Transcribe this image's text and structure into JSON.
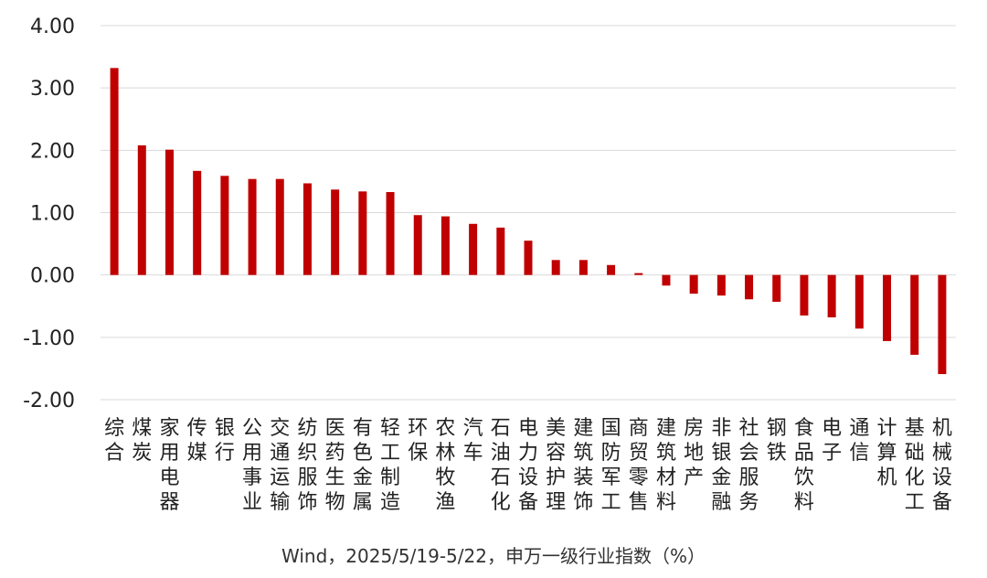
{
  "chart_data": {
    "type": "bar",
    "title": "",
    "xlabel": "",
    "ylabel": "",
    "ylim": [
      -2,
      4
    ],
    "yticks": [
      "4.00",
      "3.00",
      "2.00",
      "1.00",
      "0.00",
      "-1.00",
      "-2.00"
    ],
    "grid": true,
    "bar_color": "#c00000",
    "categories": [
      "综合",
      "煤炭",
      "家用电器",
      "传媒",
      "银行",
      "公用事业",
      "交通运输",
      "纺织服饰",
      "医药生物",
      "有色金属",
      "轻工制造",
      "环保",
      "农林牧渔",
      "汽车",
      "石油石化",
      "电力设备",
      "美容护理",
      "建筑装饰",
      "国防军工",
      "商贸零售",
      "建筑材料",
      "房地产",
      "非银金融",
      "社会服务",
      "钢铁",
      "食品饮料",
      "电子",
      "通信",
      "计算机",
      "基础化工",
      "机械设备"
    ],
    "values": [
      3.32,
      2.08,
      2.01,
      1.67,
      1.59,
      1.54,
      1.54,
      1.47,
      1.37,
      1.34,
      1.33,
      0.96,
      0.94,
      0.82,
      0.76,
      0.55,
      0.24,
      0.24,
      0.16,
      0.03,
      -0.17,
      -0.3,
      -0.33,
      -0.39,
      -0.43,
      -0.65,
      -0.68,
      -0.86,
      -1.06,
      -1.28,
      -1.59
    ],
    "source_note": "Wind，2025/5/19-5/22，申万一级行业指数（%）"
  }
}
